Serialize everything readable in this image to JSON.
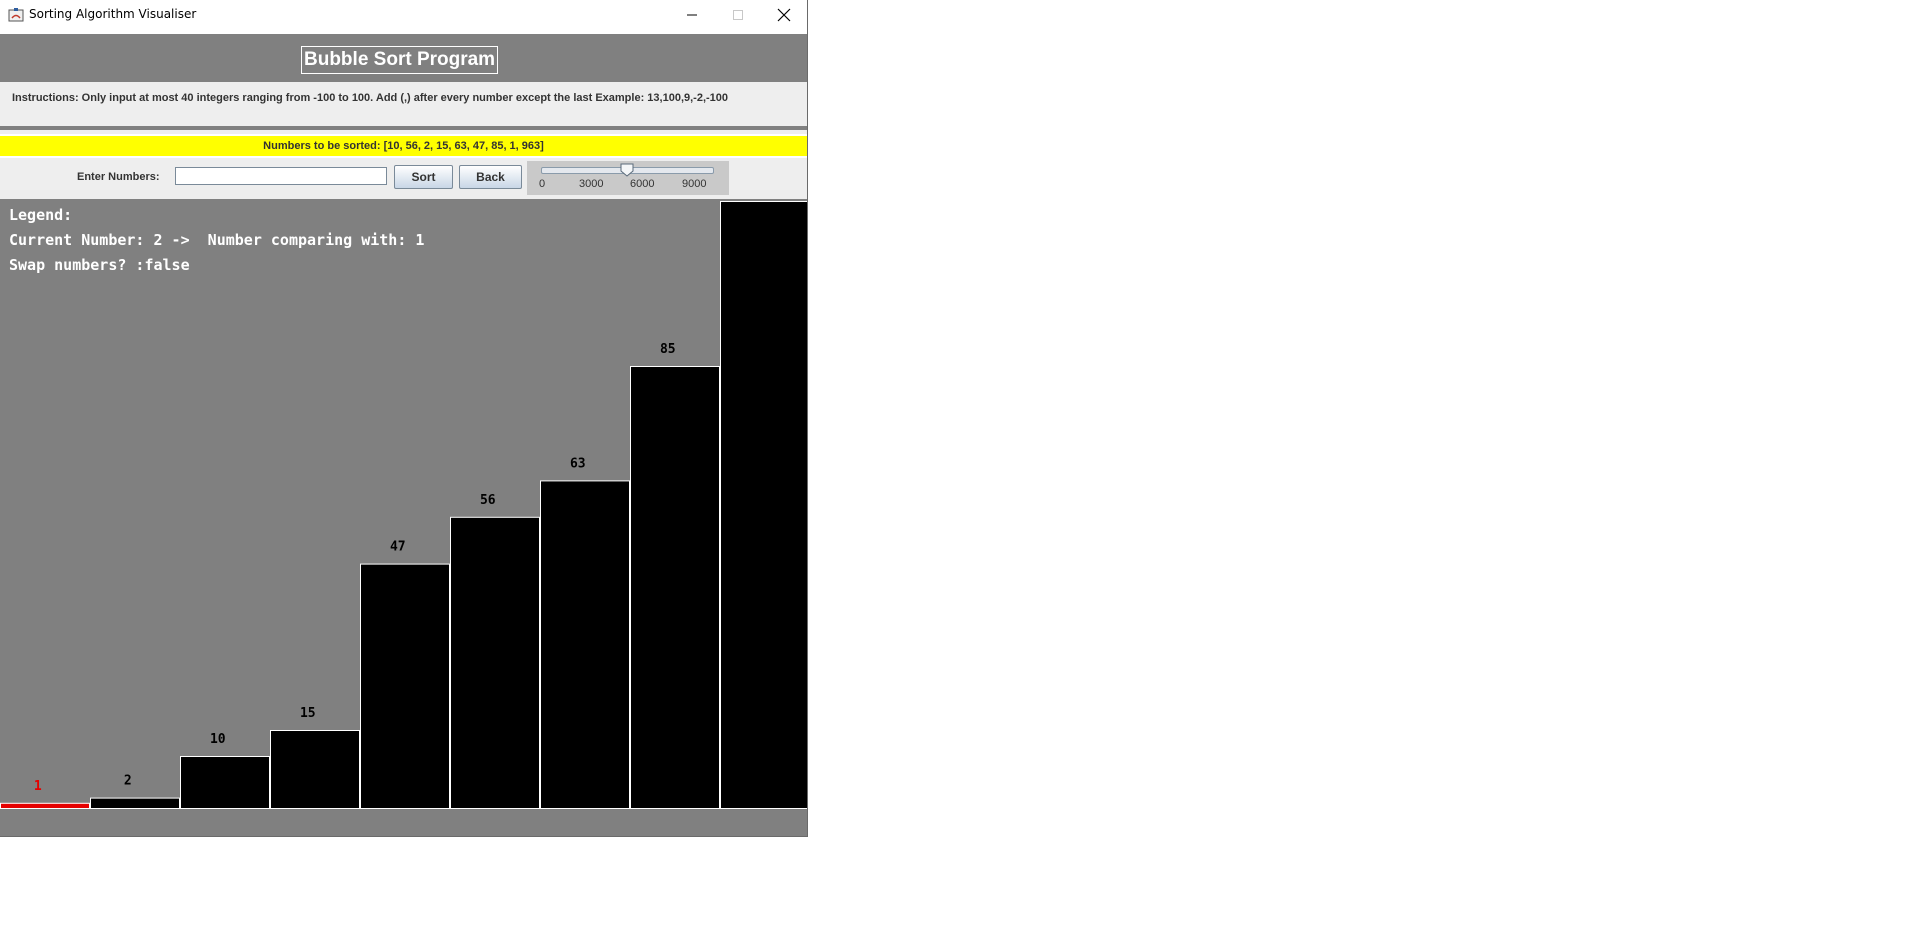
{
  "window": {
    "title": "Sorting Algorithm Visualiser"
  },
  "header": {
    "title": "Bubble Sort Program"
  },
  "instructions": "Instructions: Only input at most 40 integers ranging from -100 to 100. Add (,) after every number except the last Example: 13,100,9,-2,-100",
  "numbers_to_sort": "Numbers to be sorted: [10, 56, 2, 15, 63, 47, 85, 1, 963]",
  "controls": {
    "enter_label": "Enter Numbers:",
    "input_value": "",
    "sort_label": "Sort",
    "back_label": "Back",
    "slider": {
      "ticks": [
        "0",
        "3000",
        "6000",
        "9000"
      ],
      "min": 0,
      "max": 10000,
      "value": 5000
    }
  },
  "legend": {
    "title": "Legend:",
    "current_line": "Current Number: 2 ->  Number comparing with: 1",
    "swap_line": "Swap numbers? :false"
  },
  "colors": {
    "background": "#808080",
    "bar": "#000000",
    "bar_border": "#ffffff",
    "highlight": "#e60000",
    "label": "#000000"
  },
  "chart_data": {
    "type": "bar",
    "categories": [
      "1",
      "2",
      "10",
      "15",
      "47",
      "56",
      "63",
      "85",
      "963"
    ],
    "values": [
      1,
      2,
      10,
      15,
      47,
      56,
      63,
      85,
      963
    ],
    "highlight_index": 0,
    "labels": [
      "1",
      "2",
      "10",
      "15",
      "47",
      "56",
      "63",
      "85",
      ""
    ]
  }
}
